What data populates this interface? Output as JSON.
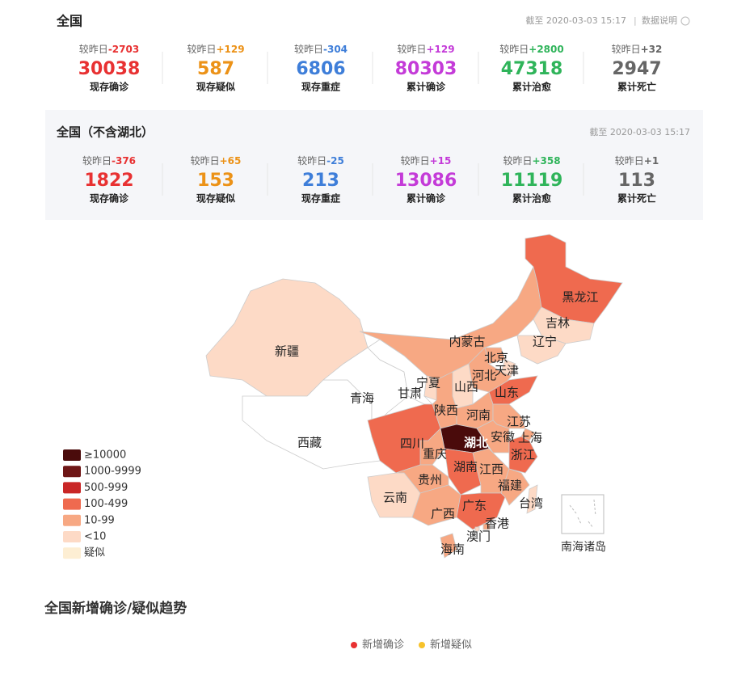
{
  "national": {
    "title": "全国",
    "updated": "截至 2020-03-03 15:17",
    "note": "数据说明",
    "stats": [
      {
        "change_prefix": "较昨日",
        "change": "-2703",
        "value": "30038",
        "label": "现存确诊",
        "color": "#e83132"
      },
      {
        "change_prefix": "较昨日",
        "change": "+129",
        "value": "587",
        "label": "现存疑似",
        "color": "#ec9217"
      },
      {
        "change_prefix": "较昨日",
        "change": "-304",
        "value": "6806",
        "label": "现存重症",
        "color": "#3e7ed9"
      },
      {
        "change_prefix": "较昨日",
        "change": "+129",
        "value": "80303",
        "label": "累计确诊",
        "color": "#c43bd8"
      },
      {
        "change_prefix": "较昨日",
        "change": "+2800",
        "value": "47318",
        "label": "累计治愈",
        "color": "#2fb45a"
      },
      {
        "change_prefix": "较昨日",
        "change": "+32",
        "value": "2947",
        "label": "累计死亡",
        "color": "#666666"
      }
    ]
  },
  "national_ex_hubei": {
    "title": "全国（不含湖北）",
    "updated": "截至 2020-03-03 15:17",
    "stats": [
      {
        "change_prefix": "较昨日",
        "change": "-376",
        "value": "1822",
        "label": "现存确诊",
        "color": "#e83132"
      },
      {
        "change_prefix": "较昨日",
        "change": "+65",
        "value": "153",
        "label": "现存疑似",
        "color": "#ec9217"
      },
      {
        "change_prefix": "较昨日",
        "change": "-25",
        "value": "213",
        "label": "现存重症",
        "color": "#3e7ed9"
      },
      {
        "change_prefix": "较昨日",
        "change": "+15",
        "value": "13086",
        "label": "累计确诊",
        "color": "#c43bd8"
      },
      {
        "change_prefix": "较昨日",
        "change": "+358",
        "value": "11119",
        "label": "累计治愈",
        "color": "#2fb45a"
      },
      {
        "change_prefix": "较昨日",
        "change": "+1",
        "value": "113",
        "label": "累计死亡",
        "color": "#666666"
      }
    ]
  },
  "map": {
    "legend": [
      {
        "label": "≥10000",
        "color": "#4a0b0b"
      },
      {
        "label": "1000-9999",
        "color": "#6e1616"
      },
      {
        "label": "500-999",
        "color": "#c92626"
      },
      {
        "label": "100-499",
        "color": "#ef6a4f"
      },
      {
        "label": "10-99",
        "color": "#f7a883"
      },
      {
        "label": "<10",
        "color": "#fddac6"
      },
      {
        "label": "疑似",
        "color": "#fdeed3"
      }
    ],
    "regions": [
      {
        "name": "新疆",
        "level": 5
      },
      {
        "name": "西藏",
        "level": null
      },
      {
        "name": "青海",
        "level": null
      },
      {
        "name": "甘肃",
        "level": null
      },
      {
        "name": "内蒙古",
        "level": 4
      },
      {
        "name": "黑龙江",
        "level": 3
      },
      {
        "name": "吉林",
        "level": 5
      },
      {
        "name": "辽宁",
        "level": 5
      },
      {
        "name": "北京",
        "level": 4
      },
      {
        "name": "天津",
        "level": 5
      },
      {
        "name": "河北",
        "level": 4
      },
      {
        "name": "山西",
        "level": 5
      },
      {
        "name": "宁夏",
        "level": 5
      },
      {
        "name": "陕西",
        "level": 4
      },
      {
        "name": "山东",
        "level": 3
      },
      {
        "name": "河南",
        "level": 4
      },
      {
        "name": "江苏",
        "level": 4
      },
      {
        "name": "安徽",
        "level": 4
      },
      {
        "name": "上海",
        "level": 4
      },
      {
        "name": "湖北",
        "level": 0
      },
      {
        "name": "浙江",
        "level": 3
      },
      {
        "name": "四川",
        "level": 3
      },
      {
        "name": "重庆",
        "level": 4
      },
      {
        "name": "湖南",
        "level": 3
      },
      {
        "name": "江西",
        "level": 4
      },
      {
        "name": "贵州",
        "level": 4
      },
      {
        "name": "云南",
        "level": 5
      },
      {
        "name": "广西",
        "level": 4
      },
      {
        "name": "广东",
        "level": 3
      },
      {
        "name": "福建",
        "level": 4
      },
      {
        "name": "台湾",
        "level": 5
      },
      {
        "name": "香港",
        "level": 4
      },
      {
        "name": "澳门",
        "level": 5
      },
      {
        "name": "海南",
        "level": 4
      }
    ],
    "inset": "南海诸岛"
  },
  "trend": {
    "title": "全国新增确诊/疑似趋势",
    "legend": [
      {
        "name": "新增确诊",
        "color": "#e83132"
      },
      {
        "name": "新增疑似",
        "color": "#f7c22b"
      }
    ]
  }
}
